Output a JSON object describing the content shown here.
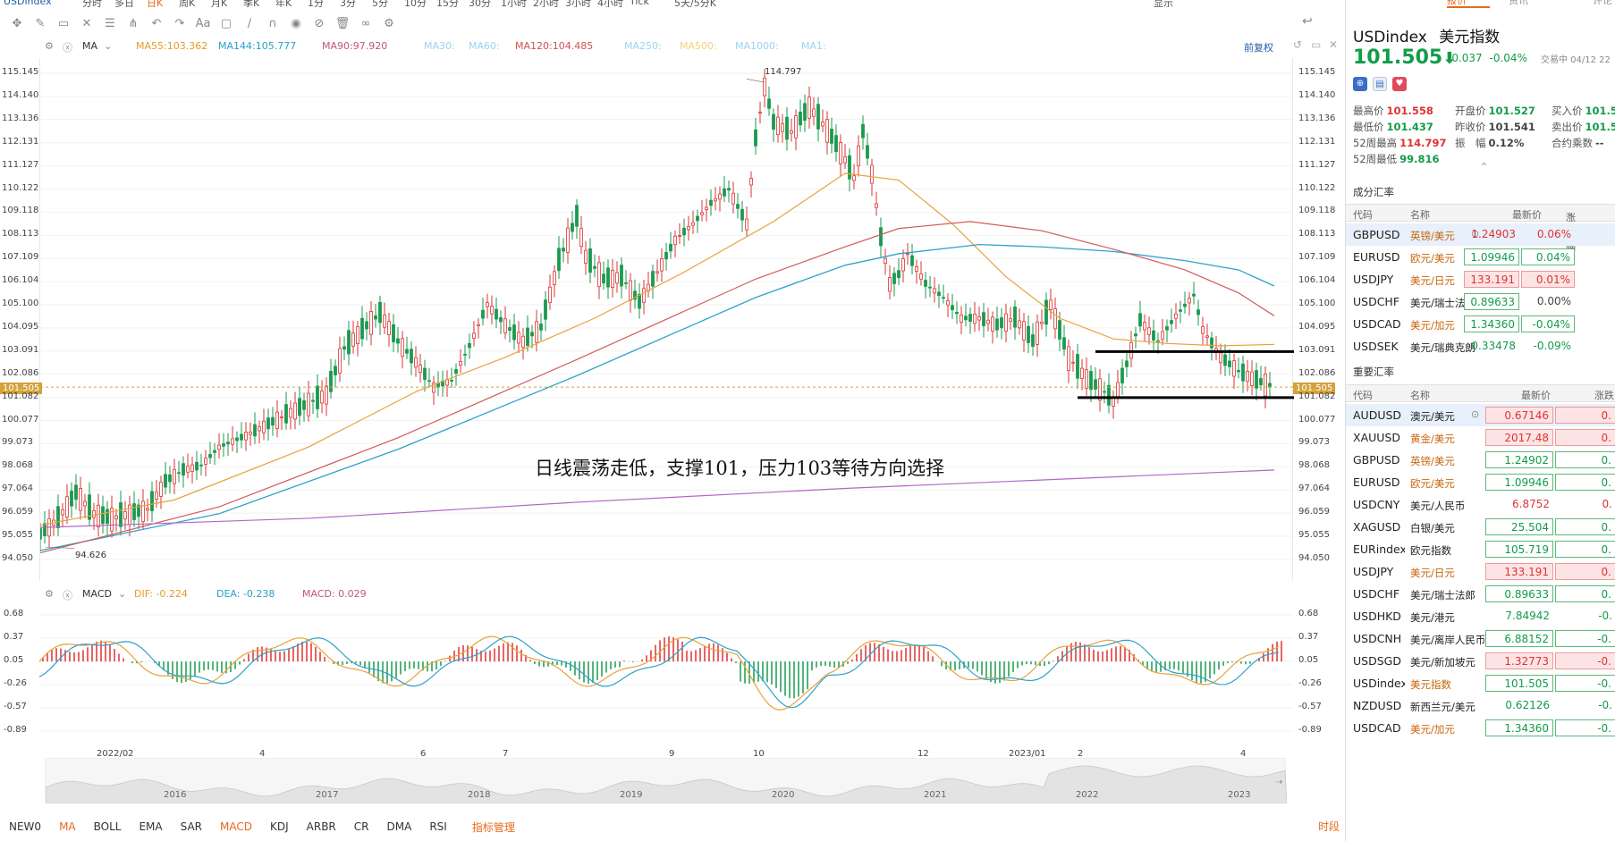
{
  "toolbar": {
    "periods": [
      "USDindex",
      "分时",
      "多日",
      "日K",
      "周K",
      "月K",
      "季K",
      "年K",
      "1分",
      "3分",
      "5分",
      "10分",
      "15分",
      "30分",
      "1小时",
      "2小时",
      "3小时",
      "4小时",
      "Tick",
      "5天/5分K"
    ],
    "active_period": "日K",
    "display_label": "显示"
  },
  "main_indicators": {
    "label": "MA",
    "items": [
      {
        "label": "MA55:",
        "value": "103.362",
        "color": "#e89a2a"
      },
      {
        "label": "MA144:",
        "value": "105.777",
        "color": "#28a0c8"
      },
      {
        "label": "MA90:",
        "value": "97.920",
        "color": "#c0577a"
      },
      {
        "label": "MA30:",
        "value": "",
        "color": "#9bd3f0"
      },
      {
        "label": "MA60:",
        "value": "",
        "color": "#9bd3f0"
      },
      {
        "label": "MA120:",
        "value": "104.485",
        "color": "#d25050"
      },
      {
        "label": "MA250:",
        "value": "",
        "color": "#9bd3f0"
      },
      {
        "label": "MA500:",
        "value": "",
        "color": "#f5d27a"
      },
      {
        "label": "MA1000:",
        "value": "",
        "color": "#9bd3f0"
      },
      {
        "label": "MA1:",
        "value": "",
        "color": "#9bd3f0"
      }
    ],
    "adjust_label": "前复权"
  },
  "price_axis": [
    "115.145",
    "114.140",
    "113.136",
    "112.131",
    "111.127",
    "110.122",
    "109.118",
    "108.113",
    "107.109",
    "106.104",
    "105.100",
    "104.095",
    "103.091",
    "102.086",
    "101.082",
    "100.077",
    "99.073",
    "98.068",
    "97.064",
    "96.059",
    "95.055",
    "94.050"
  ],
  "current_price_badge": "101.505",
  "high_marker": "114.797",
  "low_marker": "94.626",
  "annotation": "日线震荡走低，支撑101，压力103等待方向选择",
  "macd": {
    "label": "MACD",
    "dif": "DIF: -0.224",
    "dea": "DEA: -0.238",
    "macd": "MACD: 0.029",
    "axis": [
      "0.68",
      "0.37",
      "0.05",
      "-0.26",
      "-0.57",
      "-0.89"
    ]
  },
  "time_axis": [
    "2022/02",
    "4",
    "6",
    "7",
    "9",
    "10",
    "12",
    "2023/01",
    "2",
    "4"
  ],
  "overview_years": [
    "2016",
    "2017",
    "2018",
    "2019",
    "2020",
    "2021",
    "2022",
    "2023"
  ],
  "bottom_tabs": [
    "NEW0",
    "MA",
    "BOLL",
    "EMA",
    "SAR",
    "MACD",
    "KDJ",
    "ARBR",
    "CR",
    "DMA",
    "RSI",
    "指标管理"
  ],
  "bottom_right": "时段",
  "quote": {
    "tabs": [
      "报价",
      "资讯",
      "评论"
    ],
    "symbol": "USDindex",
    "name": "美元指数",
    "price": "101.505",
    "change": "-0.037",
    "change_pct": "-0.04%",
    "status": "交易中 04/12 22",
    "stats": [
      {
        "label": "最高价",
        "value": "101.558",
        "cls": "up"
      },
      {
        "label": "开盘价",
        "value": "101.527",
        "cls": "down"
      },
      {
        "label": "买入价",
        "value": "101.5",
        "cls": "down"
      },
      {
        "label": "最低价",
        "value": "101.437",
        "cls": "down"
      },
      {
        "label": "昨收价",
        "value": "101.541",
        "cls": "flat"
      },
      {
        "label": "卖出价",
        "value": "101.5",
        "cls": "down"
      },
      {
        "label": "52周最高",
        "value": "114.797",
        "cls": "up"
      },
      {
        "label": "振　幅",
        "value": "0.12%",
        "cls": "flat"
      },
      {
        "label": "合约乘数",
        "value": "--",
        "cls": "flat"
      },
      {
        "label": "52周最低",
        "value": "99.816",
        "cls": "down"
      }
    ]
  },
  "cross_rates": {
    "title": "成分汇率",
    "headers": [
      "代码",
      "名称",
      "最新价",
      "涨跌幅"
    ],
    "rows": [
      {
        "code": "GBPUSD",
        "name": "英镑/美元",
        "price": "1.24903",
        "chg": "0.06%",
        "dir": "up",
        "name_color": "tan",
        "selected": true
      },
      {
        "code": "EURUSD",
        "name": "欧元/美元",
        "price": "1.09946",
        "chg": "0.04%",
        "dir": "down",
        "name_color": "tan",
        "selected": false
      },
      {
        "code": "USDJPY",
        "name": "美元/日元",
        "price": "133.191",
        "chg": "0.01%",
        "dir": "up",
        "name_color": "tan",
        "selected": false
      },
      {
        "code": "USDCHF",
        "name": "美元/瑞士法郎",
        "price": "0.89633",
        "chg": "0.00%",
        "dir": "flat",
        "name_color": "blk",
        "selected": false
      },
      {
        "code": "USDCAD",
        "name": "美元/加元",
        "price": "1.34360",
        "chg": "-0.04%",
        "dir": "down",
        "name_color": "tan",
        "selected": false
      },
      {
        "code": "USDSEK",
        "name": "美元/瑞典克朗",
        "price": "0.33478",
        "chg": "-0.09%",
        "dir": "plain",
        "name_color": "blk",
        "selected": false
      }
    ]
  },
  "major_rates": {
    "title": "重要汇率",
    "headers": [
      "代码",
      "名称",
      "最新价",
      "涨跌"
    ],
    "rows": [
      {
        "code": "AUDUSD",
        "name": "澳元/美元",
        "price": "0.67146",
        "chg": "0.",
        "dir": "up",
        "name_color": "blk",
        "selected": true
      },
      {
        "code": "XAUUSD",
        "name": "黄金/美元",
        "price": "2017.48",
        "chg": "0.",
        "dir": "up",
        "name_color": "tan",
        "selected": false
      },
      {
        "code": "GBPUSD",
        "name": "英镑/美元",
        "price": "1.24902",
        "chg": "0.",
        "dir": "down",
        "name_color": "tan",
        "selected": false
      },
      {
        "code": "EURUSD",
        "name": "欧元/美元",
        "price": "1.09946",
        "chg": "0.",
        "dir": "down",
        "name_color": "tan",
        "selected": false
      },
      {
        "code": "USDCNY",
        "name": "美元/人民币",
        "price": "6.8752",
        "chg": "0.",
        "dir": "plainup",
        "name_color": "blk",
        "selected": false
      },
      {
        "code": "XAGUSD",
        "name": "白银/美元",
        "price": "25.504",
        "chg": "0.",
        "dir": "down",
        "name_color": "blk",
        "selected": false
      },
      {
        "code": "EURindex",
        "name": "欧元指数",
        "price": "105.719",
        "chg": "0.",
        "dir": "down",
        "name_color": "blk",
        "selected": false
      },
      {
        "code": "USDJPY",
        "name": "美元/日元",
        "price": "133.191",
        "chg": "0.",
        "dir": "up",
        "name_color": "tan",
        "selected": false
      },
      {
        "code": "USDCHF",
        "name": "美元/瑞士法郎",
        "price": "0.89633",
        "chg": "0.",
        "dir": "down",
        "name_color": "blk",
        "selected": false
      },
      {
        "code": "USDHKD",
        "name": "美元/港元",
        "price": "7.84942",
        "chg": "-0.",
        "dir": "plaindown",
        "name_color": "blk",
        "selected": false
      },
      {
        "code": "USDCNH",
        "name": "美元/离岸人民币",
        "price": "6.88152",
        "chg": "-0.",
        "dir": "down",
        "name_color": "blk",
        "selected": false
      },
      {
        "code": "USDSGD",
        "name": "美元/新加坡元",
        "price": "1.32773",
        "chg": "-0.",
        "dir": "up",
        "name_color": "blk",
        "selected": false
      },
      {
        "code": "USDindex",
        "name": "美元指数",
        "price": "101.505",
        "chg": "-0.",
        "dir": "down",
        "name_color": "tan",
        "selected": false
      },
      {
        "code": "NZDUSD",
        "name": "新西兰元/美元",
        "price": "0.62126",
        "chg": "-0.",
        "dir": "plaindown",
        "name_color": "blk",
        "selected": false
      },
      {
        "code": "USDCAD",
        "name": "美元/加元",
        "price": "1.34360",
        "chg": "-0.",
        "dir": "down",
        "name_color": "tan",
        "selected": false
      }
    ]
  }
}
